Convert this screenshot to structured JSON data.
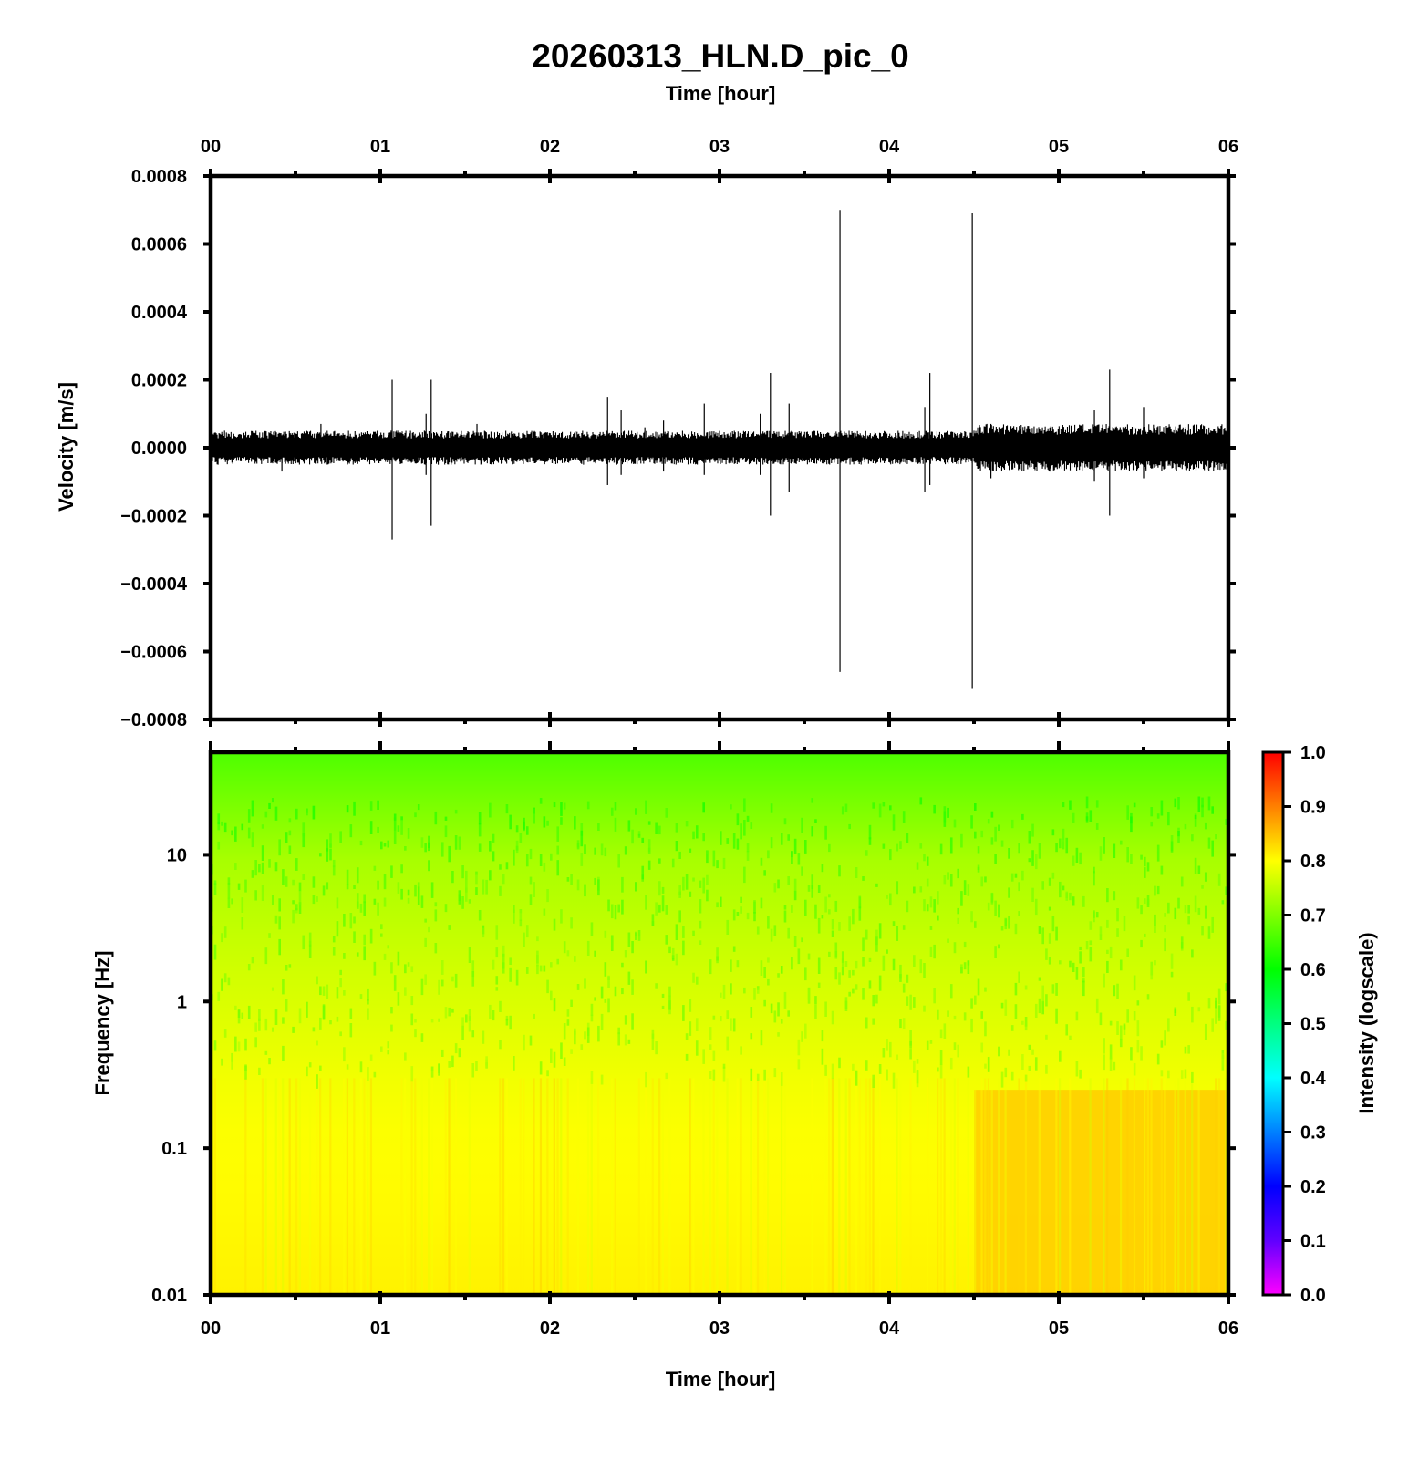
{
  "figure": {
    "title": "20260313_HLN.D_pic_0"
  },
  "chart_data": [
    {
      "type": "line",
      "panel": "waveform",
      "title": "20260313_HLN.D_pic_0",
      "xlabel": "Time [hour]",
      "ylabel": "Velocity [m/s]",
      "xlim": [
        0,
        6
      ],
      "ylim": [
        -0.0008,
        0.0008
      ],
      "x_tick_labels": [
        "00",
        "01",
        "02",
        "03",
        "04",
        "05",
        "06"
      ],
      "x_ticks": [
        0,
        1,
        2,
        3,
        4,
        5,
        6
      ],
      "x_minor_ticks": [
        0.5,
        1.5,
        2.5,
        3.5,
        4.5,
        5.5
      ],
      "y_ticks": [
        0.0008,
        0.0006,
        0.0004,
        0.0002,
        0.0,
        -0.0002,
        -0.0004,
        -0.0006,
        -0.0008
      ],
      "y_tick_labels": [
        "0.0008",
        "0.0006",
        "0.0004",
        "0.0002",
        "0.0000",
        "−0.0002",
        "−0.0004",
        "−0.0006",
        "−0.0008"
      ],
      "line_color": "#000000",
      "noise_band": [
        {
          "x": [
            0.0,
            4.5
          ],
          "amplitude": 5e-05
        },
        {
          "x": [
            4.5,
            6.0
          ],
          "amplitude": 7e-05
        }
      ],
      "spikes": [
        {
          "x": 0.42,
          "max": 3e-05,
          "min": -7e-05
        },
        {
          "x": 0.65,
          "max": 7e-05,
          "min": -3e-05
        },
        {
          "x": 1.07,
          "max": 0.0002,
          "min": -0.00027
        },
        {
          "x": 1.3,
          "max": 0.0002,
          "min": -0.00023
        },
        {
          "x": 1.27,
          "max": 0.0001,
          "min": -8e-05
        },
        {
          "x": 1.57,
          "max": 7e-05,
          "min": -3e-05
        },
        {
          "x": 2.34,
          "max": 0.00015,
          "min": -0.00011
        },
        {
          "x": 2.42,
          "max": 0.00011,
          "min": -8e-05
        },
        {
          "x": 2.56,
          "max": 6e-05,
          "min": -4e-05
        },
        {
          "x": 2.67,
          "max": 8e-05,
          "min": -7e-05
        },
        {
          "x": 2.91,
          "max": 0.00013,
          "min": -8e-05
        },
        {
          "x": 3.24,
          "max": 0.0001,
          "min": -8e-05
        },
        {
          "x": 3.3,
          "max": 0.00022,
          "min": -0.0002
        },
        {
          "x": 3.41,
          "max": 0.00013,
          "min": -0.00013
        },
        {
          "x": 3.71,
          "max": 0.0007,
          "min": -0.00066
        },
        {
          "x": 4.21,
          "max": 0.00012,
          "min": -0.00013
        },
        {
          "x": 4.24,
          "max": 0.00022,
          "min": -0.00011
        },
        {
          "x": 4.49,
          "max": 0.00069,
          "min": -0.00071
        },
        {
          "x": 4.6,
          "max": 7e-05,
          "min": -9e-05
        },
        {
          "x": 5.21,
          "max": 0.00011,
          "min": -0.0001
        },
        {
          "x": 5.3,
          "max": 0.00023,
          "min": -0.0002
        },
        {
          "x": 5.5,
          "max": 0.00012,
          "min": -9e-05
        },
        {
          "x": 5.76,
          "max": 5e-05,
          "min": -6e-05
        }
      ]
    },
    {
      "type": "heatmap",
      "panel": "spectrogram",
      "xlabel": "Time [hour]",
      "ylabel": "Frequency [Hz]",
      "xlim": [
        0,
        6
      ],
      "ylim": [
        0.01,
        50
      ],
      "yscale": "log",
      "x_tick_labels": [
        "00",
        "01",
        "02",
        "03",
        "04",
        "05",
        "06"
      ],
      "x_ticks": [
        0,
        1,
        2,
        3,
        4,
        5,
        6
      ],
      "x_minor_ticks": [
        0.5,
        1.5,
        2.5,
        3.5,
        4.5,
        5.5
      ],
      "y_ticks": [
        0.01,
        0.1,
        1,
        10
      ],
      "y_tick_labels": [
        "0.01",
        "0.1",
        "1",
        "10"
      ],
      "colorbar": {
        "label": "Intensity (logscale)",
        "range": [
          0.0,
          1.0
        ],
        "ticks": [
          "1.0",
          "0.9",
          "0.8",
          "0.7",
          "0.6",
          "0.5",
          "0.4",
          "0.3",
          "0.2",
          "0.1",
          "0.0"
        ],
        "colors": [
          "#ff00ff",
          "#6000ff",
          "#0000ff",
          "#0080ff",
          "#00ffff",
          "#00ff80",
          "#00ff00",
          "#80ff00",
          "#ffff00",
          "#ff8000",
          "#ff0000"
        ]
      },
      "intensity_profile": [
        {
          "freq": 50,
          "intensity": 0.66
        },
        {
          "freq": 10,
          "intensity": 0.73
        },
        {
          "freq": 2,
          "intensity": 0.76
        },
        {
          "freq": 1,
          "intensity": 0.77
        },
        {
          "freq": 0.3,
          "intensity": 0.79
        },
        {
          "freq": 0.1,
          "intensity": 0.8
        },
        {
          "freq": 0.01,
          "intensity": 0.81
        }
      ],
      "late_segment": {
        "x": [
          4.5,
          6.0
        ],
        "freq_band": [
          0.01,
          0.25
        ],
        "intensity": 0.84
      }
    }
  ]
}
